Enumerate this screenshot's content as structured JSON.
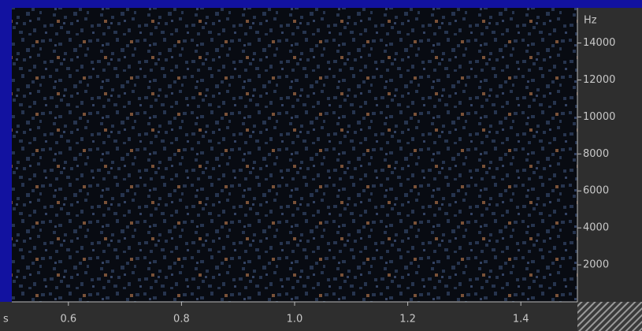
{
  "chart_data": {
    "type": "spectrogram",
    "x_label": "s",
    "y_label": "Hz",
    "xlim": [
      0.5,
      1.5
    ],
    "xticks": [
      0.6,
      0.8,
      {
        "value": 1,
        "label": "1.0"
      },
      1.2,
      1.4
    ],
    "ylim": [
      0,
      15900
    ],
    "yticks": [
      2000,
      4000,
      6000,
      8000,
      10000,
      12000,
      14000
    ]
  }
}
